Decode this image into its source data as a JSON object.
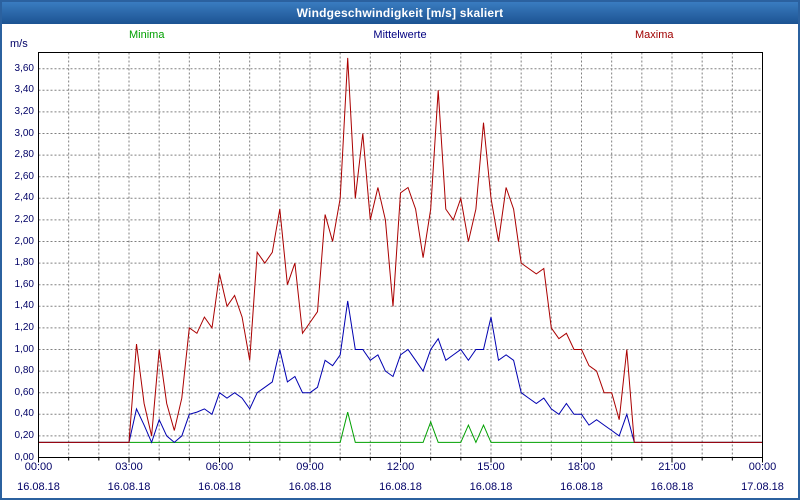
{
  "title": "Windgeschwindigkeit [m/s] skaliert",
  "legend": {
    "minima": {
      "label": "Minima",
      "color": "#00a000"
    },
    "mittelwerte": {
      "label": "Mittelwerte",
      "color": "#000080"
    },
    "maxima": {
      "label": "Maxima",
      "color": "#a00000"
    }
  },
  "axis": {
    "unit": "m/s",
    "y_tick_labels": [
      "0,00",
      "0,20",
      "0,40",
      "0,60",
      "0,80",
      "1,00",
      "1,20",
      "1,40",
      "1,60",
      "1,80",
      "2,00",
      "2,20",
      "2,40",
      "2,60",
      "2,80",
      "3,00",
      "3,20",
      "3,40",
      "3,60"
    ],
    "x_time_labels": [
      "00:00",
      "03:00",
      "06:00",
      "09:00",
      "12:00",
      "15:00",
      "18:00",
      "21:00",
      "00:00"
    ],
    "x_date_labels": [
      "16.08.18",
      "16.08.18",
      "16.08.18",
      "16.08.18",
      "16.08.18",
      "16.08.18",
      "16.08.18",
      "16.08.18",
      "17.08.18"
    ]
  },
  "colors": {
    "window_border": "#2b619f",
    "titlebar_top": "#3a7cc0",
    "titlebar_bottom": "#1c5392",
    "axis_text": "#000066",
    "grid": "#808080",
    "plot_frame": "#000000",
    "background": "#ffffff"
  },
  "chart_data": {
    "type": "line",
    "title": "Windgeschwindigkeit [m/s] skaliert",
    "xlabel": "",
    "ylabel": "m/s",
    "ylim": [
      0,
      3.75
    ],
    "y_grid_step": 0.2,
    "x_range_hours": [
      0,
      24
    ],
    "x_interval_minutes": 15,
    "grid": true,
    "legend_position": "top",
    "series": [
      {
        "name": "Minima",
        "color": "#00a000",
        "values": [
          0.14,
          0.14,
          0.14,
          0.14,
          0.14,
          0.14,
          0.14,
          0.14,
          0.14,
          0.14,
          0.14,
          0.14,
          0.14,
          0.14,
          0.14,
          0.14,
          0.14,
          0.14,
          0.14,
          0.14,
          0.14,
          0.14,
          0.14,
          0.14,
          0.14,
          0.14,
          0.14,
          0.14,
          0.14,
          0.14,
          0.14,
          0.14,
          0.14,
          0.14,
          0.14,
          0.14,
          0.14,
          0.14,
          0.14,
          0.14,
          0.14,
          0.42,
          0.14,
          0.14,
          0.14,
          0.14,
          0.14,
          0.14,
          0.14,
          0.14,
          0.14,
          0.14,
          0.33,
          0.14,
          0.14,
          0.14,
          0.14,
          0.3,
          0.14,
          0.3,
          0.14,
          0.14,
          0.14,
          0.14,
          0.14,
          0.14,
          0.14,
          0.14,
          0.14,
          0.14,
          0.14,
          0.14,
          0.14,
          0.14,
          0.14,
          0.14,
          0.14,
          0.14,
          0.14,
          0.14,
          0.14,
          0.14,
          0.14,
          0.14,
          0.14,
          0.14,
          0.14,
          0.14,
          0.14,
          0.14,
          0.14,
          0.14,
          0.14,
          0.14,
          0.14,
          0.14,
          0.14
        ]
      },
      {
        "name": "Mittelwerte",
        "color": "#0000b0",
        "values": [
          0.14,
          0.14,
          0.14,
          0.14,
          0.14,
          0.14,
          0.14,
          0.14,
          0.14,
          0.14,
          0.14,
          0.14,
          0.14,
          0.45,
          0.3,
          0.14,
          0.35,
          0.2,
          0.14,
          0.2,
          0.4,
          0.42,
          0.45,
          0.4,
          0.6,
          0.55,
          0.6,
          0.55,
          0.45,
          0.6,
          0.65,
          0.7,
          1.0,
          0.7,
          0.75,
          0.6,
          0.6,
          0.65,
          0.9,
          0.85,
          0.95,
          1.45,
          1.0,
          1.0,
          0.9,
          0.95,
          0.8,
          0.75,
          0.95,
          1.0,
          0.9,
          0.8,
          1.0,
          1.1,
          0.9,
          0.95,
          1.0,
          0.9,
          1.0,
          1.0,
          1.3,
          0.9,
          0.95,
          0.9,
          0.6,
          0.55,
          0.5,
          0.55,
          0.45,
          0.4,
          0.5,
          0.4,
          0.4,
          0.3,
          0.35,
          0.3,
          0.25,
          0.2,
          0.4,
          0.14,
          0.14,
          0.14,
          0.14,
          0.14,
          0.14,
          0.14,
          0.14,
          0.14,
          0.14,
          0.14,
          0.14,
          0.14,
          0.14,
          0.14,
          0.14,
          0.14,
          0.14
        ]
      },
      {
        "name": "Maxima",
        "color": "#aa0000",
        "values": [
          0.14,
          0.14,
          0.14,
          0.14,
          0.14,
          0.14,
          0.14,
          0.14,
          0.14,
          0.14,
          0.14,
          0.14,
          0.14,
          1.05,
          0.5,
          0.2,
          1.0,
          0.5,
          0.25,
          0.55,
          1.2,
          1.15,
          1.3,
          1.2,
          1.7,
          1.4,
          1.5,
          1.3,
          0.9,
          1.9,
          1.8,
          1.9,
          2.3,
          1.6,
          1.8,
          1.15,
          1.25,
          1.35,
          2.25,
          2.0,
          2.4,
          3.7,
          2.4,
          3.0,
          2.2,
          2.5,
          2.2,
          1.4,
          2.45,
          2.5,
          2.3,
          1.85,
          2.3,
          3.4,
          2.3,
          2.2,
          2.4,
          2.0,
          2.3,
          3.1,
          2.4,
          2.0,
          2.5,
          2.3,
          1.8,
          1.75,
          1.7,
          1.75,
          1.2,
          1.1,
          1.15,
          1.0,
          1.0,
          0.85,
          0.8,
          0.6,
          0.6,
          0.35,
          1.0,
          0.14,
          0.14,
          0.14,
          0.14,
          0.14,
          0.14,
          0.14,
          0.14,
          0.14,
          0.14,
          0.14,
          0.14,
          0.14,
          0.14,
          0.14,
          0.14,
          0.14,
          0.14
        ]
      }
    ]
  }
}
